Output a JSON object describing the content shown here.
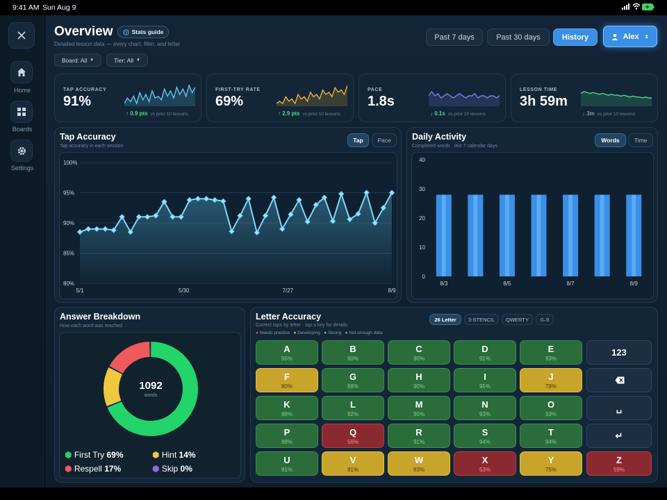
{
  "status": {
    "time": "9:41 AM",
    "date": "Sun Aug 9"
  },
  "sidebar": {
    "items": [
      {
        "label": "Home",
        "icon": "home-icon"
      },
      {
        "label": "Boards",
        "icon": "grid-icon"
      },
      {
        "label": "Settings",
        "icon": "gear-icon"
      }
    ]
  },
  "header": {
    "title": "Overview",
    "guide_label": "Stats guide",
    "subtitle": "Detailed lesson data — every chart, filter, and letter",
    "filters": {
      "board": "Board: All",
      "tier": "Tier: All"
    },
    "ranges": [
      "Past 7 days",
      "Past 30 days",
      "History"
    ],
    "active_range": "History",
    "user": "Alex"
  },
  "colors": {
    "accent": "#3f8ee0",
    "good": "#4ad98a",
    "warn": "#f0c040",
    "bad": "#e05560",
    "teal": "#5cc8f0"
  },
  "kpis": [
    {
      "label": "TAP ACCURACY",
      "value": "91%",
      "delta": "0.9 pts",
      "vs": "vs prior 10 lessons",
      "dir": "up",
      "color": "#5cc8f0",
      "spark": [
        2,
        5,
        3,
        6,
        2,
        8,
        4,
        7,
        3,
        9,
        5,
        6,
        4,
        10,
        6,
        9,
        5,
        11,
        7,
        10,
        6,
        12,
        8,
        11
      ]
    },
    {
      "label": "FIRST-TRY RATE",
      "value": "69%",
      "delta": "2.9 pts",
      "vs": "vs prior 10 lessons",
      "dir": "up",
      "color": "#f0b030",
      "spark": [
        2,
        3,
        2,
        5,
        3,
        4,
        2,
        6,
        4,
        5,
        3,
        7,
        5,
        6,
        4,
        8,
        6,
        7,
        5,
        9,
        7,
        8,
        6,
        10
      ]
    },
    {
      "label": "PACE",
      "value": "1.8s",
      "delta": "0.1s",
      "vs": "vs prior 10 lessons",
      "dir": "down",
      "color": "#7a7ae8",
      "spark": [
        5,
        5.2,
        5,
        5.1,
        4.9,
        5,
        5.1,
        5,
        4.9,
        5,
        5.1,
        5,
        4.9,
        5,
        5,
        5.1,
        4.9,
        5,
        5,
        4.9,
        5,
        5,
        4.9,
        5
      ]
    },
    {
      "label": "LESSON TIME",
      "value": "3h 59m",
      "delta": "3m",
      "vs": "vs prior 10 lessons",
      "dir": "down",
      "color": "#4ad98a",
      "spark": [
        6,
        6.2,
        6.1,
        6,
        6.1,
        6,
        5.9,
        6,
        5.9,
        5.8,
        5.9,
        5.8,
        5.8,
        5.7,
        5.8,
        5.7,
        5.6,
        5.7,
        5.6,
        5.6,
        5.5,
        5.6,
        5.5,
        5.5
      ]
    }
  ],
  "tap_card": {
    "title": "Tap Accuracy",
    "subtitle": "Tap accuracy in each session",
    "tabs": [
      "Tap",
      "Pace"
    ],
    "active": "Tap"
  },
  "activity_card": {
    "title": "Daily Activity",
    "subtitle": "Completed words · last 7 calendar days",
    "tabs": [
      "Words",
      "Time"
    ],
    "active": "Words"
  },
  "breakdown_card": {
    "title": "Answer Breakdown",
    "subtitle": "How each word was reached",
    "total": "1092",
    "total_label": "words",
    "legend": [
      {
        "label": "First Try",
        "value": "69%",
        "color": "#22d46a"
      },
      {
        "label": "Hint",
        "value": "14%",
        "color": "#f0c840"
      },
      {
        "label": "Respell",
        "value": "17%",
        "color": "#f05a5a"
      },
      {
        "label": "Skip",
        "value": "0%",
        "color": "#8a6ae0"
      }
    ]
  },
  "letters_card": {
    "title": "Letter Accuracy",
    "subtitle": "Correct taps by letter · tap a key for details",
    "legend": [
      {
        "label": "Needs practice",
        "color": "#e05560"
      },
      {
        "label": "Developing",
        "color": "#f0c040"
      },
      {
        "label": "Strong",
        "color": "#4ad98a"
      },
      {
        "label": "Not enough data",
        "color": "#8aa0b8"
      }
    ],
    "layouts": [
      "26 Letter",
      "3-STENCIL",
      "QWERTY",
      "0–9"
    ],
    "active_layout": "26 Letter",
    "keys": [
      {
        "l": "A",
        "p": "95%",
        "c": "g"
      },
      {
        "l": "B",
        "p": "90%",
        "c": "g"
      },
      {
        "l": "C",
        "p": "90%",
        "c": "g"
      },
      {
        "l": "D",
        "p": "91%",
        "c": "g"
      },
      {
        "l": "E",
        "p": "93%",
        "c": "g"
      },
      {
        "l": "F",
        "p": "80%",
        "c": "y"
      },
      {
        "l": "G",
        "p": "88%",
        "c": "g"
      },
      {
        "l": "H",
        "p": "90%",
        "c": "g"
      },
      {
        "l": "I",
        "p": "95%",
        "c": "g"
      },
      {
        "l": "J",
        "p": "78%",
        "c": "y"
      },
      {
        "l": "K",
        "p": "88%",
        "c": "g"
      },
      {
        "l": "L",
        "p": "92%",
        "c": "g"
      },
      {
        "l": "M",
        "p": "90%",
        "c": "g"
      },
      {
        "l": "N",
        "p": "93%",
        "c": "g"
      },
      {
        "l": "O",
        "p": "93%",
        "c": "g"
      },
      {
        "l": "P",
        "p": "88%",
        "c": "g"
      },
      {
        "l": "Q",
        "p": "56%",
        "c": "r"
      },
      {
        "l": "R",
        "p": "91%",
        "c": "g"
      },
      {
        "l": "S",
        "p": "94%",
        "c": "g"
      },
      {
        "l": "T",
        "p": "94%",
        "c": "g"
      },
      {
        "l": "U",
        "p": "91%",
        "c": "g"
      },
      {
        "l": "V",
        "p": "81%",
        "c": "y"
      },
      {
        "l": "W",
        "p": "83%",
        "c": "y"
      },
      {
        "l": "X",
        "p": "53%",
        "c": "r"
      },
      {
        "l": "Y",
        "p": "75%",
        "c": "y"
      }
    ],
    "side_keys": [
      {
        "label": "123",
        "icon": "numbers-key"
      },
      {
        "label": "",
        "icon": "backspace-icon"
      },
      {
        "label": "␣",
        "icon": "space-icon"
      },
      {
        "label": "↵",
        "icon": "return-icon"
      },
      {
        "label": "Z",
        "pct": "59%",
        "c": "r"
      }
    ]
  },
  "chart_data": [
    {
      "type": "line",
      "title": "Tap Accuracy",
      "ylim": [
        80,
        100
      ],
      "yticks": [
        "100%",
        "95%",
        "90%",
        "85%",
        "80%"
      ],
      "xticks": [
        "5/1",
        "5/30",
        "7/27",
        "8/9"
      ],
      "grid": true,
      "values": [
        88.5,
        89,
        89,
        89,
        88.8,
        91,
        88.5,
        91,
        91,
        91.2,
        93.5,
        91,
        91,
        93.8,
        94,
        94,
        93.8,
        93.6,
        88.6,
        91.2,
        94,
        88.4,
        91.2,
        94.2,
        89,
        91.4,
        93.8,
        90.2,
        93,
        94.2,
        90.3,
        94.8,
        90.6,
        91.5,
        95,
        90,
        92.5,
        95
      ]
    },
    {
      "type": "bar",
      "title": "Daily Activity",
      "ylim": [
        0,
        40
      ],
      "yticks": [
        "40",
        "30",
        "20",
        "10",
        "0"
      ],
      "xticks": [
        "8/3",
        "8/5",
        "8/7",
        "8/9"
      ],
      "values": [
        28,
        28,
        28,
        28,
        28,
        28,
        28
      ]
    },
    {
      "type": "pie",
      "title": "Answer Breakdown",
      "values": [
        69,
        14,
        17,
        0
      ],
      "labels": [
        "First Try",
        "Hint",
        "Respell",
        "Skip"
      ]
    }
  ]
}
